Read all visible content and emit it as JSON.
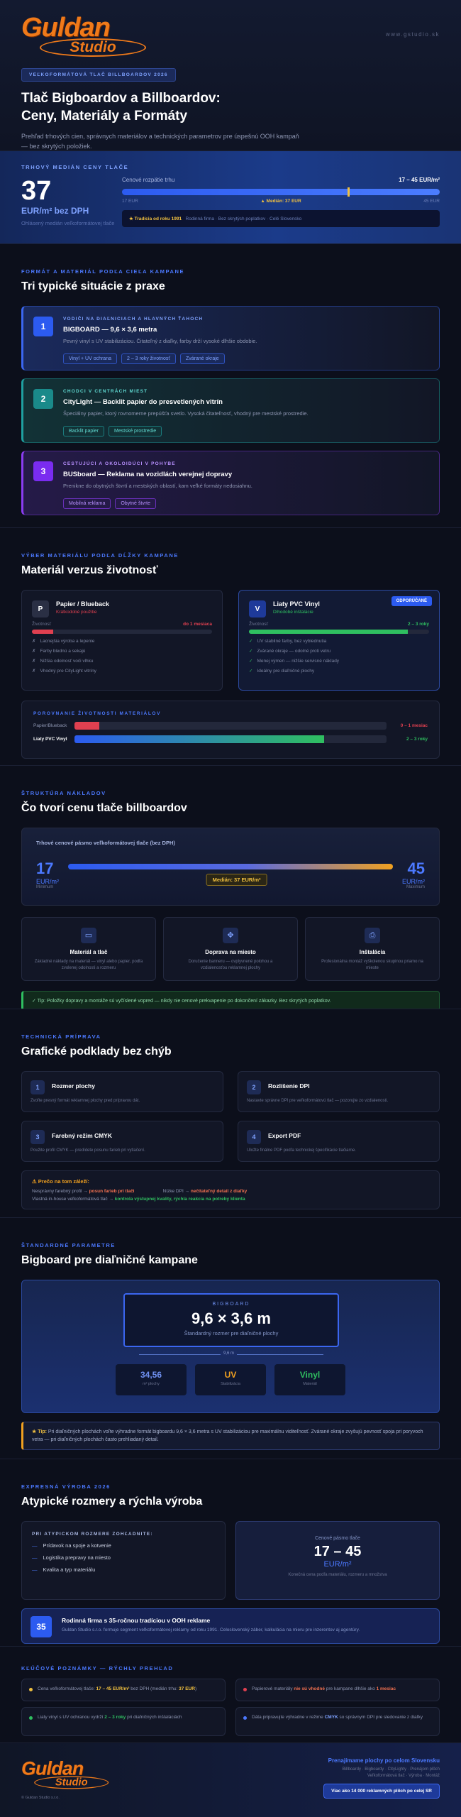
{
  "header": {
    "logo_name": "Guldan",
    "logo_sub": "Studio",
    "url": "www.gstudio.sk",
    "badge": "VEĽKOFORMÁTOVÁ TLAČ BILLBOARDOV 2026",
    "title": "Tlač Bigboardov a Billboardov: Ceny, Materiály a Formáty",
    "intro": "Prehľad trhových cien, správnych materiálov a technických parametrov pre úspešnú OOH kampaň — bez skrytých položiek."
  },
  "price": {
    "eyebrow": "TRHOVÝ MEDIÁN CENY TLAČE",
    "value": "37",
    "unit": "EUR/m² bez DPH",
    "note": "Ohlásený medián veľkoformátovej tlače",
    "range_label": "Cenové rozpätie trhu",
    "range": "17 – 45 EUR/m²",
    "min": "17 EUR",
    "median": "▲ Medián: 37 EUR",
    "max": "45 EUR",
    "strip_bold": "★ Tradícia od roku 1991",
    "strip": "Rodinná firma · Bez skrytých poplatkov · Celé Slovensko"
  },
  "situations": {
    "eyebrow": "FORMÁT A MATERIÁL PODĽA CIEĽA KAMPANE",
    "title": "Tri typické situácie z praxe",
    "cards": [
      {
        "num": "1",
        "kicker": "VODIČI NA DIAĽNICIACH A HLAVNÝCH ŤAHOCH",
        "title": "BIGBOARD — 9,6 × 3,6 metra",
        "text": "Pevný vinyl s UV stabilizáciou. Čitateľný z diaľky, farby drží vysoké dlhšie obdobie.",
        "tags": [
          "Vinyl + UV ochrana",
          "2 – 3 roky životnosť",
          "Zvárané okraje"
        ]
      },
      {
        "num": "2",
        "kicker": "CHODCI V CENTRÁCH MIEST",
        "title": "CityLight — Backlit papier do presvetlených vitrín",
        "text": "Špeciálny papier, ktorý rovnomerne prepúšťa svetlo. Vysoká čitateľnosť, vhodný pre mestské prostredie.",
        "tags": [
          "Backlit papier",
          "Mestské prostredie"
        ]
      },
      {
        "num": "3",
        "kicker": "CESTUJÚCI A OKOLOIDÚCI V POHYBE",
        "title": "BUSboard — Reklama na vozidlách verejnej dopravy",
        "text": "Prenikne do obytných štvrtí a mestských oblastí, kam veľké formáty nedosiahnu.",
        "tags": [
          "Mobilná reklama",
          "Obytné štvrte"
        ]
      }
    ]
  },
  "materials": {
    "eyebrow": "VÝBER MATERIÁLU PODĽA DĹŽKY KAMPANE",
    "title": "Materiál verzus životnosť",
    "cards": [
      {
        "icon": "P",
        "name": "Papier / Blueback",
        "sub": "Krátkodobé použitie",
        "life_label": "Životnosť",
        "life": "do 1 mesiaca",
        "items": [
          "Lacnejšia výroba a lepenie",
          "Farby blednú a sekajú",
          "Nižšia odolnosť voči vlhku",
          "Vhodný pre CityLight vitríny"
        ]
      },
      {
        "icon": "V",
        "badge": "ODPORÚČANÉ",
        "name": "Liaty PVC Vinyl",
        "sub": "Dlhodobé inštalácie",
        "life_label": "Životnosť",
        "life": "2 – 3 roky",
        "items": [
          "UV stabilné farby, bez vyblednutia",
          "Zvárané okraje — odolné proti vetru",
          "Menej výmen — nižšie servisné náklady",
          "Ideálny pre diaľničné plochy"
        ]
      }
    ],
    "compare": {
      "title": "POROVNANIE ŽIVOTNOSTI MATERIÁLOV",
      "rows": [
        {
          "name": "Papier/Blueback",
          "value": "0 – 1 mesiac"
        },
        {
          "name": "Liaty PVC Vinyl",
          "value": "2 – 3 roky"
        }
      ]
    }
  },
  "costs": {
    "eyebrow": "ŠTRUKTÚRA NÁKLADOV",
    "title": "Čo tvorí cenu tlače billboardov",
    "band_title": "Trhové cenové pásmo veľkoformátovej tlače (bez DPH)",
    "min": "17",
    "min_unit": "EUR/m²",
    "min_label": "Minimum",
    "max": "45",
    "max_unit": "EUR/m²",
    "max_label": "Maximum",
    "median": "Medián: 37 EUR/m²",
    "cards": [
      {
        "title": "Materiál a tlač",
        "text": "Základné náklady na materiál — vinyl alebo papier, podľa zvolenej odolnosti a rozmeru"
      },
      {
        "title": "Doprava na miesto",
        "text": "Doručenie banneru — ovplyvnené polohou a vzdialenosťou reklamnej plochy"
      },
      {
        "title": "Inštalácia",
        "text": "Profesionálna montáž vyškolenou skupinou priamo na mieste"
      }
    ],
    "tip": "✓ Tip: Položky dopravy a montáže sú vyčíslené vopred — nikdy nie cenové prekvapenie po dokončení zákazky. Bez skrytých poplatkov."
  },
  "prep": {
    "eyebrow": "TECHNICKÁ PRÍPRAVA",
    "title": "Grafické podklady bez chýb",
    "steps": [
      {
        "num": "1",
        "title": "Rozmer plochy",
        "text": "Zvoľte presný formát reklamnej plochy pred prípravou dát."
      },
      {
        "num": "2",
        "title": "Rozlíšenie DPI",
        "text": "Nastavte správne DPI pre veľkoformátovú tlač — pozorujte zo vzdialenosti."
      },
      {
        "num": "3",
        "title": "Farebný režim CMYK",
        "text": "Použite profil CMYK — predídete posunu farieb pri vytlačení."
      },
      {
        "num": "4",
        "title": "Export PDF",
        "text": "Uložte finálne PDF podľa technickej špecifikácie tlačiarne."
      }
    ],
    "warn_title": "⚠ Prečo na tom záleží:",
    "warn_lines": [
      [
        "Nesprávny farebný profil → ",
        "posun farieb pri tlači"
      ],
      [
        "Nízke DPI → ",
        "nečitateľný detail z diaľky"
      ],
      [
        "Vlastná in-house veľkoformátová tlač → ",
        "kontrola výstupnej kvality, rýchla reakcia na potreby klienta"
      ]
    ]
  },
  "bigboard": {
    "eyebrow": "ŠTANDARDNÉ PARAMETRE",
    "title": "Bigboard pre diaľničné kampane",
    "label": "BIGBOARD",
    "size": "9,6 × 3,6 m",
    "size_note": "Štandardný rozmer pre diaľničné plochy",
    "width": "9,6 m",
    "stats": [
      {
        "value": "34,56",
        "label": "m² plochy"
      },
      {
        "value": "UV",
        "label": "Stabilizácia"
      },
      {
        "value": "Vinyl",
        "label": "Materiál"
      }
    ],
    "tip": [
      "★ Tip: ",
      "Pri diaľničných plochách voľte výhradne formát bigboardu 9,6 × 3,6 metra s UV stabilizáciou pre maximálnu viditeľnosť. Zvárané okraje zvyšujú pevnosť spoja pri poryvoch vetra — pri diaľničných plochách často prehliadaný detail."
    ]
  },
  "express": {
    "eyebrow": "EXPRESNÁ VÝROBA 2026",
    "title": "Atypické rozmery a rýchla výroba",
    "list_title": "PRI ATYPICKOM ROZMERE ZOHĽADNITE:",
    "list": [
      "Prídavok na spoje a kotvenie",
      "Logistika prepravy na miesto",
      "Kvalita a typ materiálu"
    ],
    "price_label": "Cenové pásmo tlače",
    "price": "17 – 45",
    "price_unit": "EUR/m²",
    "price_note": "Konečná cena podľa materiálu, rozmeru a množstva",
    "firm_num": "35",
    "firm_title": "Rodinná firma s 35-ročnou tradíciou v OOH reklame",
    "firm_text": "Guldan Studio s.r.o. formuje segment veľkoformátovej reklamy od roku 1991. Celoslovenský záber, kalkulácia na mieru pre inzerentov aj agentúry."
  },
  "notes": {
    "eyebrow": "KĽÚČOVÉ POZNÁMKY — RÝCHLY PREHĽAD",
    "items": [
      [
        "Cena veľkoformátovej tlače: ",
        "17 – 45 EUR/m²",
        " bez DPH (medián trhu: ",
        "37 EUR",
        ")"
      ],
      [
        "Papierové materiály ",
        "nie sú vhodné",
        " pre kampane dlhšie ako ",
        "1 mesiac"
      ],
      [
        "Liaty vinyl s UV ochranou vydrží ",
        "2 – 3 roky",
        " pri diaľničných inštaláciách"
      ],
      [
        "Dáta pripravujte výhradne v režime ",
        "CMYK",
        " so správnym DPI pre sledovanie z diaľky"
      ]
    ]
  },
  "footer": {
    "copy": "© Guldan Studio s.r.o.",
    "headline": "Prenajímame plochy po celom Slovensku",
    "links": "Billboardy · Bigboardy · CityLighty · Prenájom plôch",
    "links2": "Veľkoformátová tlač · Výroba · Montáž",
    "button": "Viac ako 14 000 reklamných plôch po celej SR"
  }
}
